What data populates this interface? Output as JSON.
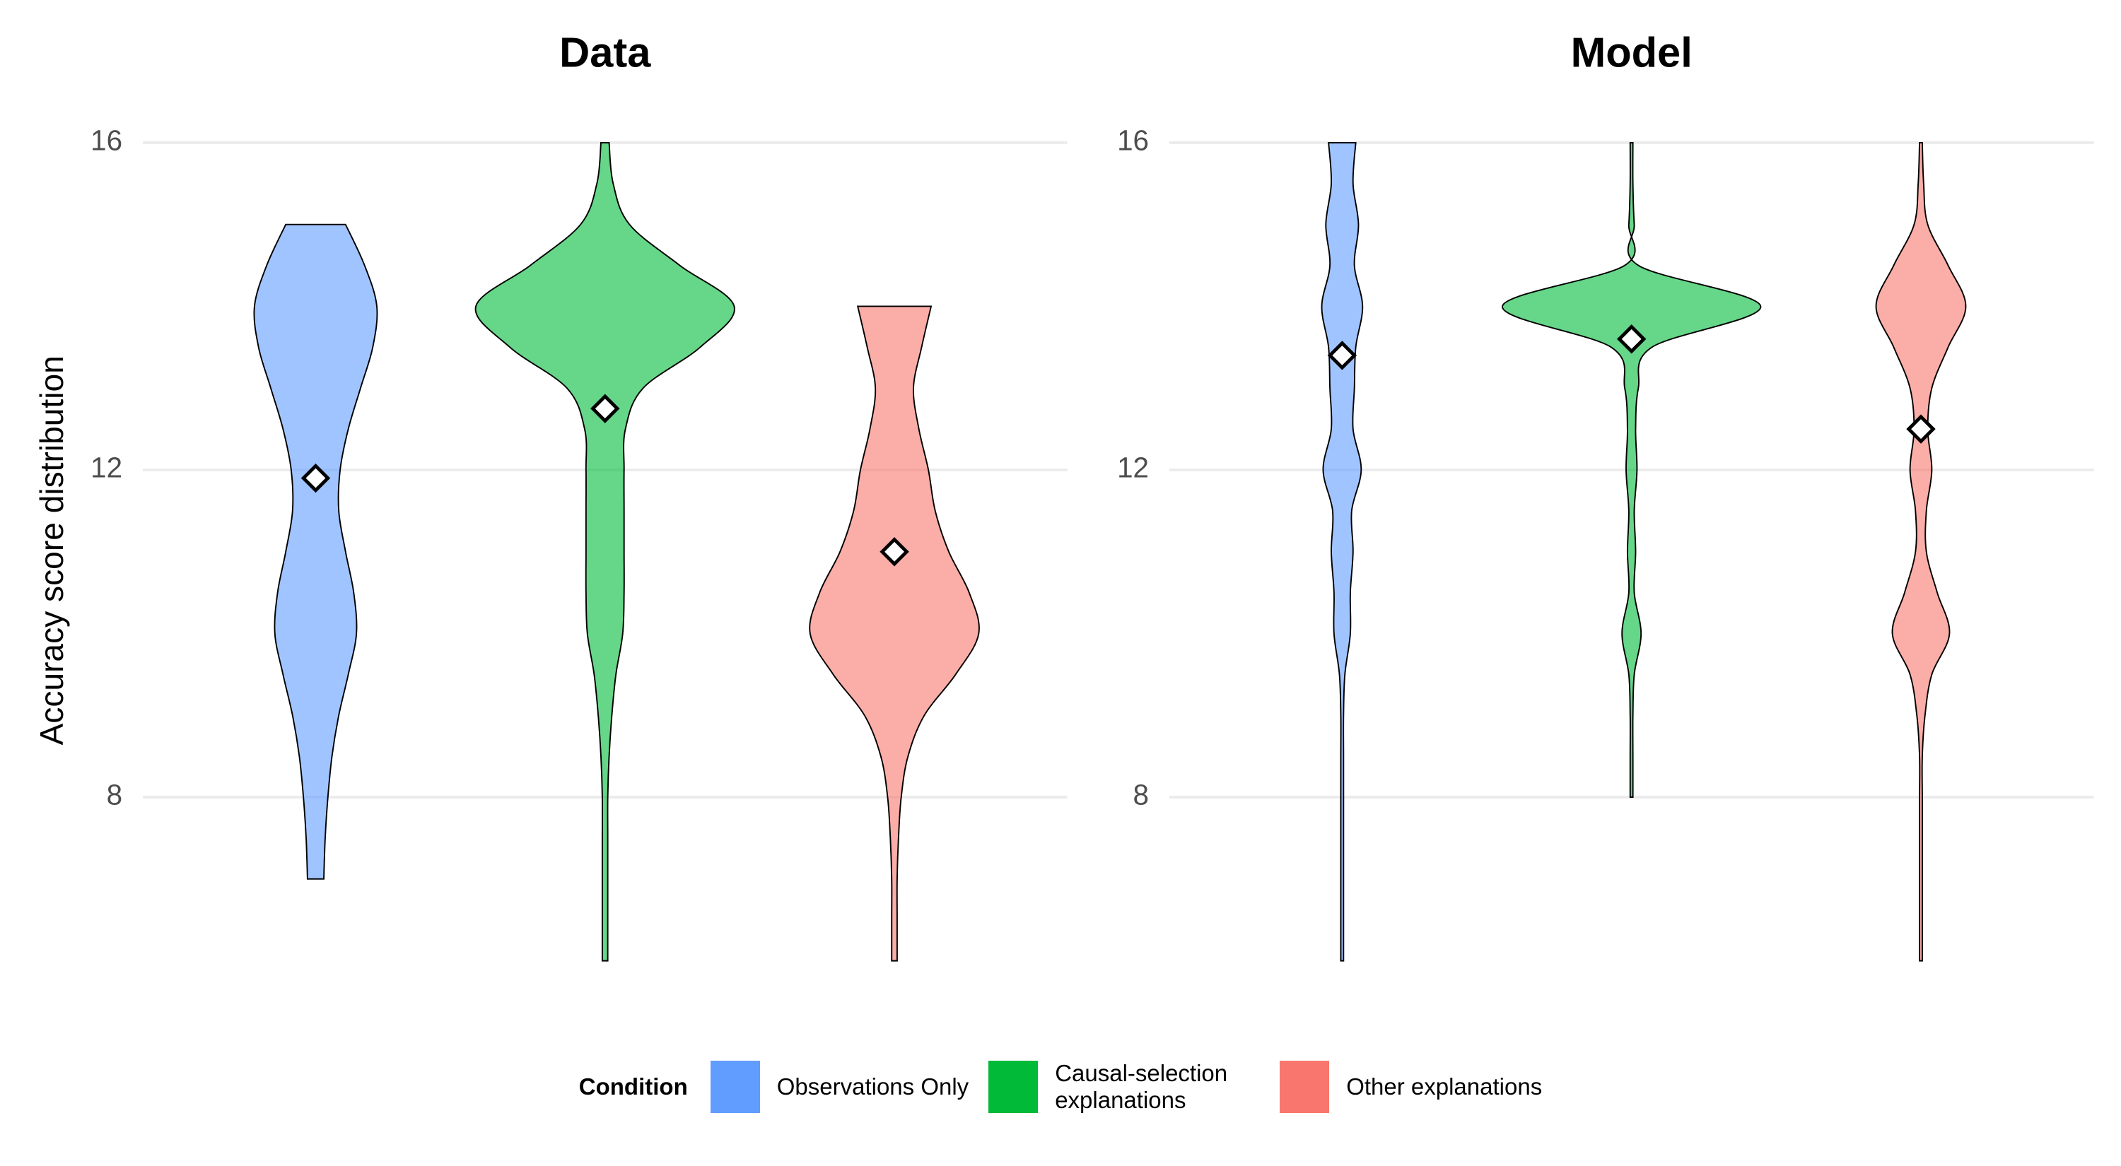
{
  "chart_data": [
    {
      "type": "violin",
      "title": "Data",
      "ylabel": "Accuracy score distribution",
      "ylim": [
        6,
        16
      ],
      "yticks": [
        8,
        12,
        16
      ],
      "grid": true,
      "series": [
        {
          "name": "Observations Only",
          "color": "#619cff",
          "mean": 11.9,
          "y": [
            7,
            7.5,
            8,
            8.5,
            9,
            9.5,
            10,
            10.5,
            11,
            11.5,
            12,
            12.5,
            13,
            13.5,
            14,
            14.5,
            15
          ],
          "density": [
            6,
            7,
            9,
            12,
            17,
            24,
            30,
            28,
            22,
            17,
            18,
            24,
            33,
            42,
            45,
            36,
            22
          ]
        },
        {
          "name": "Causal-selection explanations",
          "color": "#00ba38",
          "mean": 12.75,
          "y": [
            6,
            6.5,
            7,
            7.5,
            8,
            8.5,
            9,
            9.5,
            10,
            10.5,
            11,
            11.5,
            12,
            12.5,
            13,
            13.5,
            14,
            14.5,
            15,
            15.5,
            16
          ],
          "density": [
            2,
            2,
            2,
            2,
            2,
            3,
            5,
            8,
            13,
            14,
            14,
            14,
            14,
            15,
            28,
            70,
            95,
            55,
            18,
            6,
            3
          ]
        },
        {
          "name": "Other explanations",
          "color": "#f8766d",
          "mean": 11,
          "y": [
            6,
            6.5,
            7,
            7.5,
            8,
            8.5,
            9,
            9.5,
            10,
            10.5,
            11,
            11.5,
            12,
            12.5,
            13,
            13.5,
            14
          ],
          "density": [
            2,
            2,
            2,
            3,
            5,
            10,
            22,
            45,
            62,
            55,
            40,
            30,
            25,
            18,
            14,
            20,
            27
          ]
        }
      ]
    },
    {
      "type": "violin",
      "title": "Model",
      "ylim": [
        6,
        16
      ],
      "yticks": [
        8,
        12,
        16
      ],
      "grid": true,
      "series": [
        {
          "name": "Observations Only",
          "color": "#619cff",
          "mean": 13.4,
          "y": [
            6,
            6.5,
            7,
            7.5,
            8,
            8.5,
            9,
            9.5,
            10,
            10.5,
            11,
            11.5,
            12,
            12.5,
            13,
            13.5,
            14,
            14.5,
            15,
            15.5,
            16
          ],
          "density": [
            1,
            1,
            1,
            1,
            1,
            1,
            1,
            2,
            6,
            6,
            8,
            7,
            14,
            8,
            9,
            10,
            15,
            9,
            12,
            8,
            10
          ]
        },
        {
          "name": "Causal-selection explanations",
          "color": "#00ba38",
          "mean": 13.6,
          "y": [
            8,
            8.5,
            9,
            9.5,
            10,
            10.5,
            11,
            11.5,
            12,
            12.5,
            13,
            13.5,
            14,
            14.5,
            15,
            15.5,
            16
          ],
          "density": [
            1,
            1,
            1,
            2,
            7,
            2,
            3,
            2,
            4,
            3,
            5,
            15,
            95,
            5,
            2,
            1,
            1
          ]
        },
        {
          "name": "Other explanations",
          "color": "#f8766d",
          "mean": 12.5,
          "y": [
            6,
            6.5,
            7,
            7.5,
            8,
            8.5,
            9,
            9.5,
            10,
            10.5,
            11,
            11.5,
            12,
            12.5,
            13,
            13.5,
            14,
            14.5,
            15,
            15.5,
            16
          ],
          "density": [
            1,
            1,
            1,
            1,
            1,
            1,
            3,
            8,
            21,
            12,
            4,
            4,
            8,
            5,
            8,
            20,
            33,
            20,
            5,
            2,
            1
          ]
        }
      ]
    }
  ],
  "legend": {
    "title": "Condition",
    "position": "bottom"
  }
}
